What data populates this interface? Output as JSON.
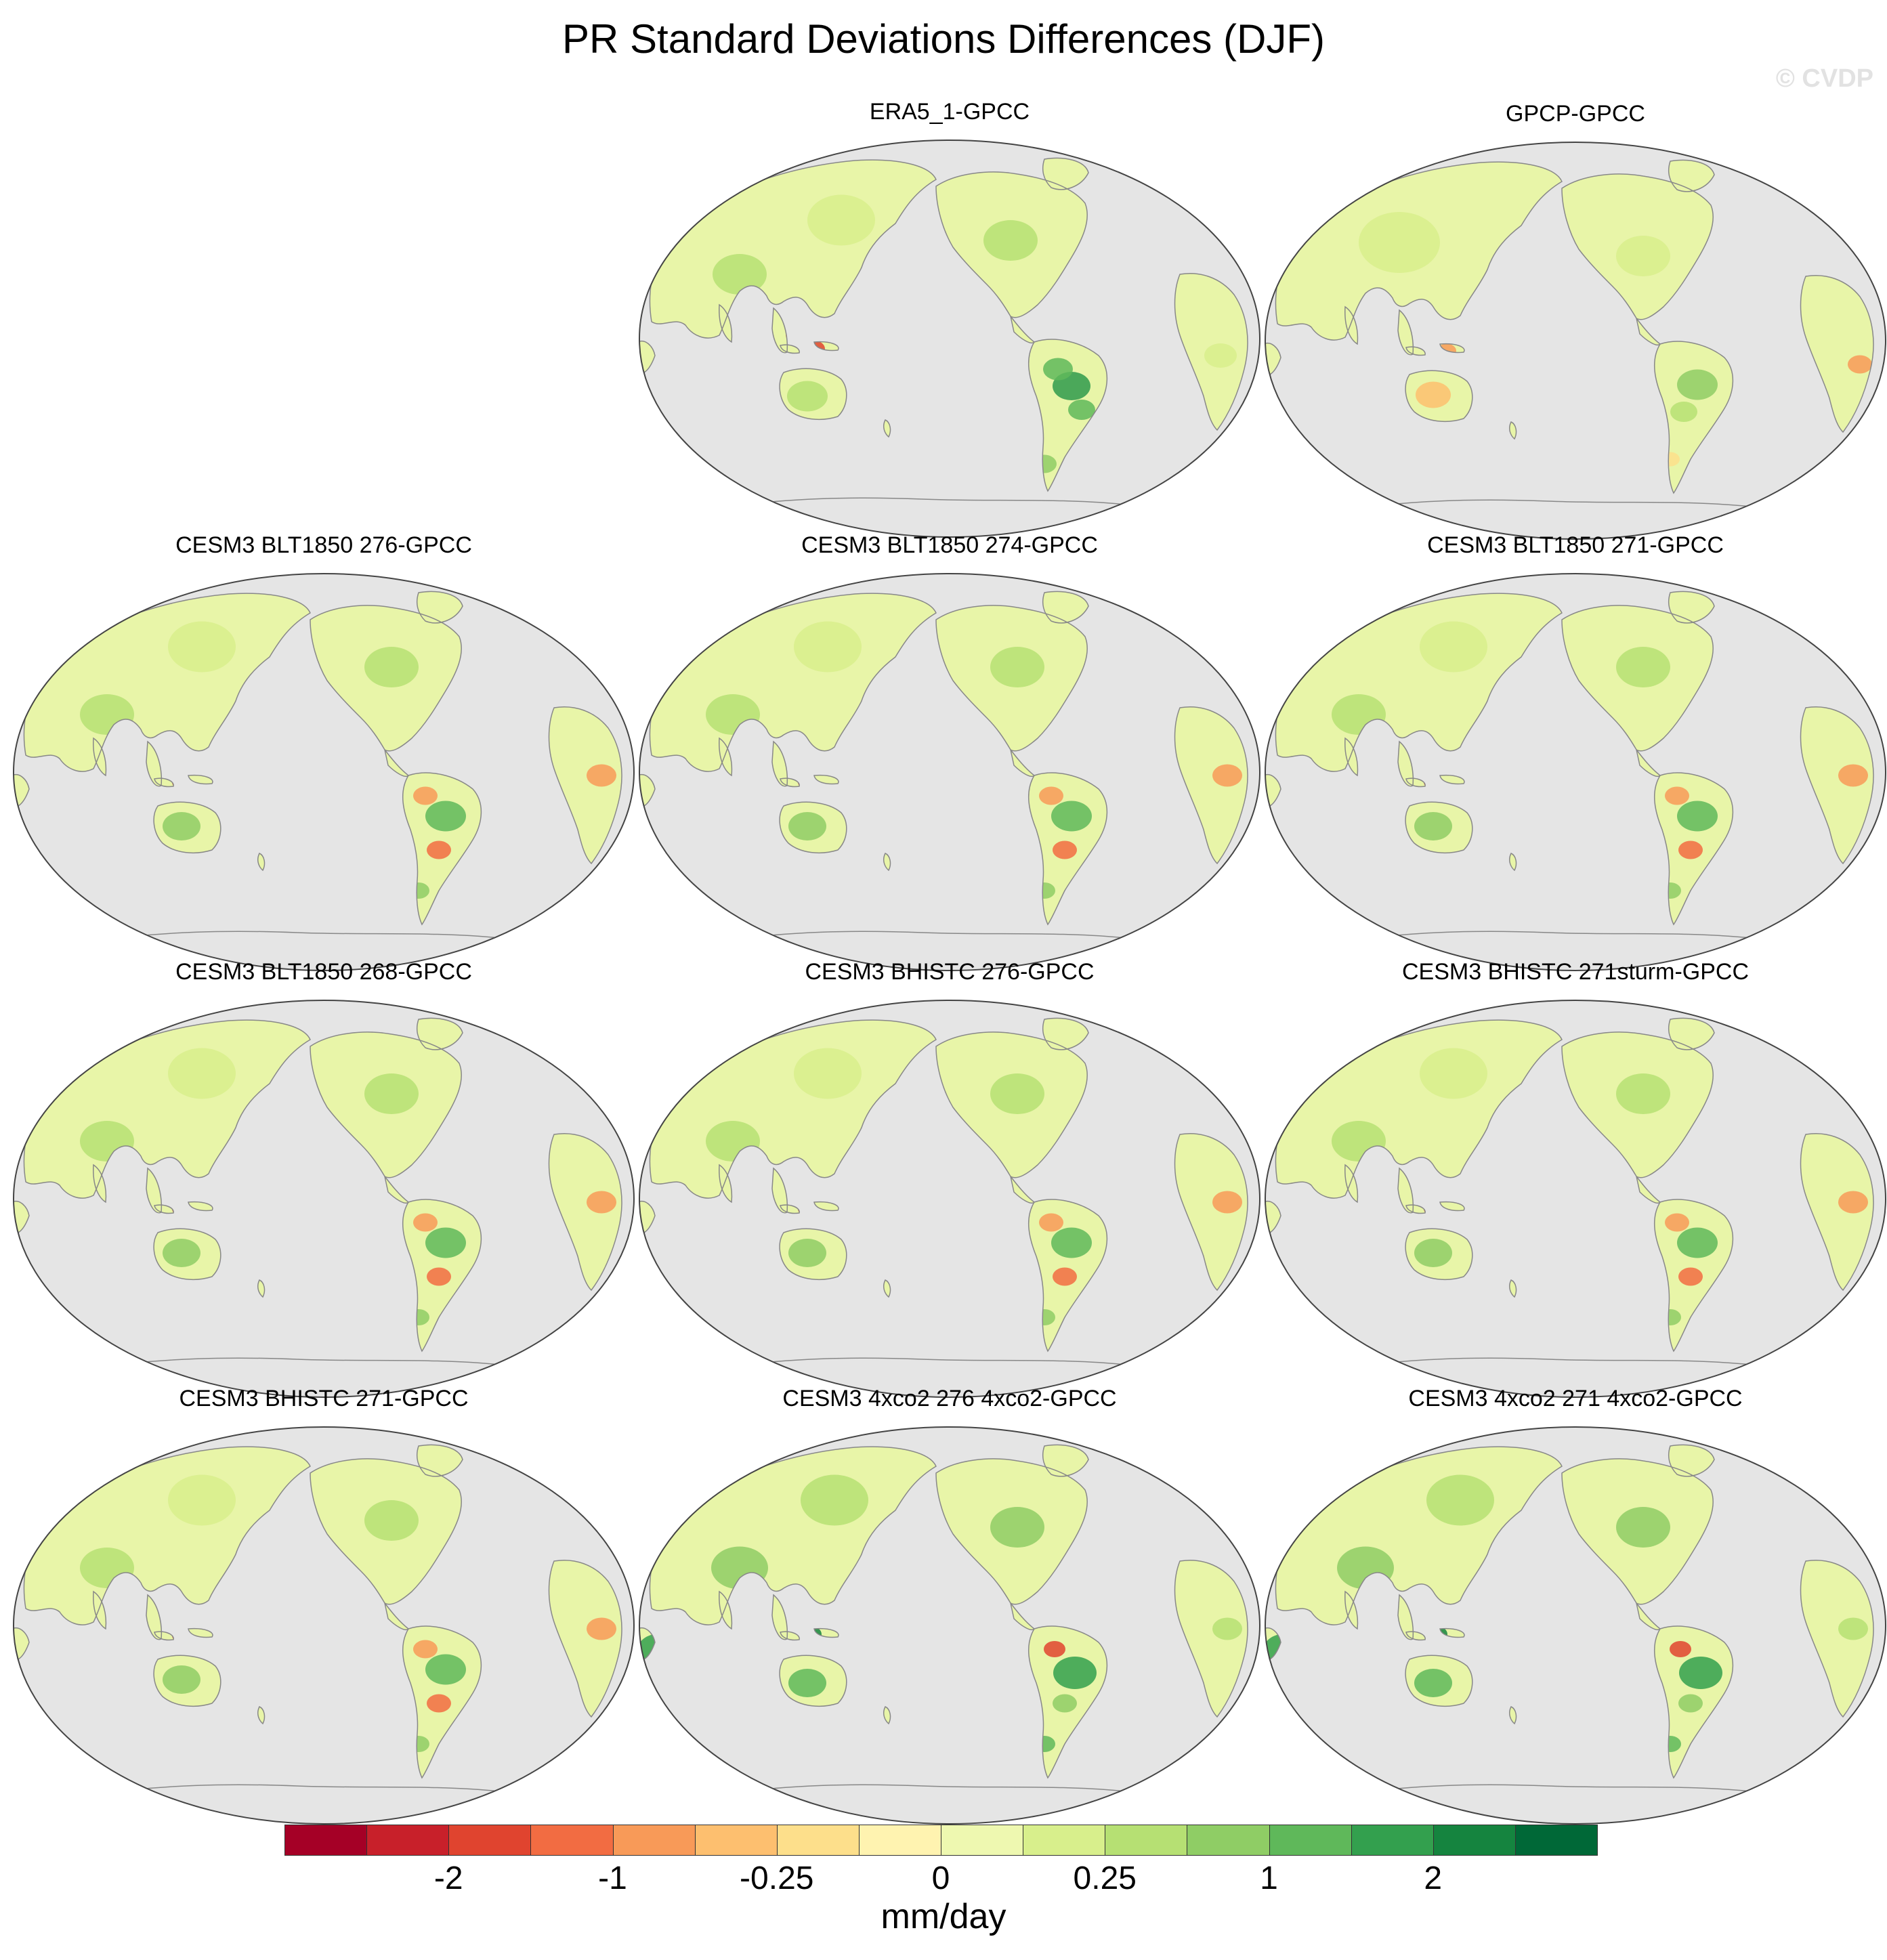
{
  "title": "PR Standard Deviations Differences (DJF)",
  "watermark": "© CVDP",
  "panels": [
    {
      "label": "ERA5_1-GPCC",
      "pattern": "wet"
    },
    {
      "label": "GPCP-GPCC",
      "pattern": "mixed"
    },
    {
      "label": "CESM3 BLT1850 276-GPCC",
      "pattern": "model"
    },
    {
      "label": "CESM3 BLT1850 274-GPCC",
      "pattern": "model"
    },
    {
      "label": "CESM3 BLT1850 271-GPCC",
      "pattern": "model"
    },
    {
      "label": "CESM3 BLT1850 268-GPCC",
      "pattern": "model"
    },
    {
      "label": "CESM3 BHISTC 276-GPCC",
      "pattern": "model"
    },
    {
      "label": "CESM3 BHISTC 271sturm-GPCC",
      "pattern": "model"
    },
    {
      "label": "CESM3 BHISTC 271-GPCC",
      "pattern": "model"
    },
    {
      "label": "CESM3 4xco2 276 4xco2-GPCC",
      "pattern": "wetter"
    },
    {
      "label": "CESM3 4xco2 271 4xco2-GPCC",
      "pattern": "wetter"
    }
  ],
  "colorbar": {
    "units": "mm/day",
    "tick_labels": [
      "-2",
      "-1",
      "-0.25",
      "0",
      "0.25",
      "1",
      "2"
    ],
    "colors": [
      "#a50026",
      "#c8202a",
      "#e0442f",
      "#f26c42",
      "#f89a58",
      "#fdbf6f",
      "#fddf8b",
      "#fff3b0",
      "#eef8b0",
      "#d8ef8c",
      "#b6e073",
      "#8fcd65",
      "#5fb85a",
      "#33a04e",
      "#15843f",
      "#006837"
    ]
  },
  "colors": {
    "ocean": "#e5e5e5",
    "coastline": "#888888"
  }
}
